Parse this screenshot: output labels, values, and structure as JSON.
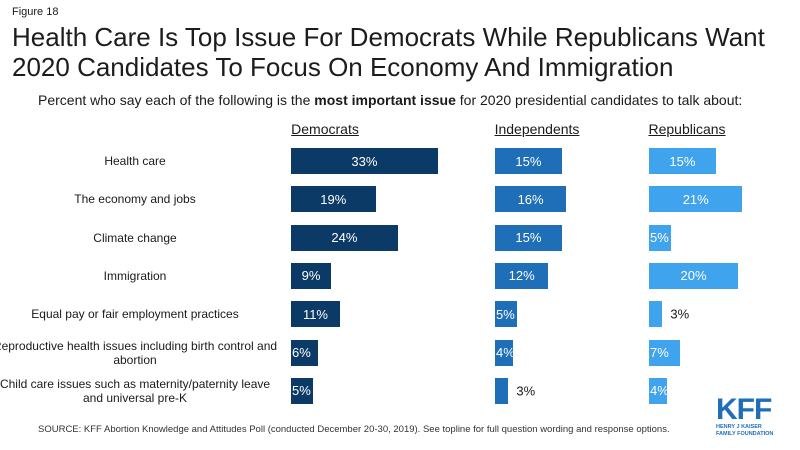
{
  "figure_label": "Figure 18",
  "chart_data": {
    "type": "bar",
    "title": "Health Care Is Top Issue For Democrats While Republicans Want 2020 Candidates To Focus On Economy And Immigration",
    "subtitle_pre": "Percent who say each of the following is the ",
    "subtitle_bold": "most important issue",
    "subtitle_post": " for 2020 presidential candidates to talk about:",
    "categories": [
      "Health care",
      "The economy and jobs",
      "Climate change",
      "Immigration",
      "Equal pay or fair employment practices",
      "Reproductive health issues including birth control and abortion",
      "Child care issues such as maternity/paternity leave and universal pre-K"
    ],
    "series": [
      {
        "name": "Democrats",
        "color": "#0b3a66",
        "values": [
          33,
          19,
          24,
          9,
          11,
          6,
          5
        ]
      },
      {
        "name": "Independents",
        "color": "#1e6fb8",
        "values": [
          15,
          16,
          15,
          12,
          5,
          4,
          3
        ]
      },
      {
        "name": "Republicans",
        "color": "#40a3ee",
        "values": [
          15,
          21,
          5,
          20,
          3,
          7,
          4
        ]
      }
    ],
    "unit": "%"
  },
  "source": "SOURCE: KFF Abortion Knowledge and Attitudes Poll (conducted December 20-30, 2019). See topline for full question wording and response options.",
  "logo": {
    "main": "KFF",
    "line1": "HENRY J KAISER",
    "line2": "FAMILY FOUNDATION"
  }
}
